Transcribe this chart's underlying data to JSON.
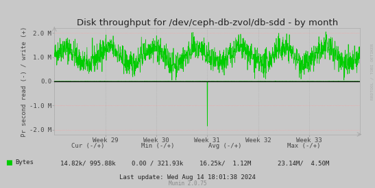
{
  "title": "Disk throughput for /dev/ceph-db-zvol/db-sdd - by month",
  "ylabel": "Pr second read (-) / write (+)",
  "background_color": "#c8c8c8",
  "plot_bg_color": "#c8c8c8",
  "line_color": "#00cc00",
  "zero_line_color": "#000000",
  "grid_h_color": "#ff9999",
  "grid_v_color": "#aaaaaa",
  "ylim": [
    -2200000,
    2200000
  ],
  "yticks": [
    -2000000,
    -1000000,
    0.0,
    1000000,
    2000000
  ],
  "ytick_labels": [
    "-2.0 M",
    "-1.0 M",
    "0.0",
    "1.0 M",
    "2.0 M"
  ],
  "xtick_labels": [
    "Week 29",
    "Week 30",
    "Week 31",
    "Week 32",
    "Week 33"
  ],
  "legend_label": "Bytes",
  "legend_color": "#00cc00",
  "stats_cur": "14.82k/ 995.88k",
  "stats_min": "0.00 / 321.93k",
  "stats_avg": "16.25k/  1.12M",
  "stats_max": "23.14M/  4.50M",
  "last_update": "Last update: Wed Aug 14 18:01:38 2024",
  "munin_version": "Munin 2.0.75",
  "rrdtool_label": "RRDTOOL / TOBI OETIKER",
  "title_fontsize": 9.5,
  "axis_fontsize": 6.5,
  "stats_fontsize": 6.5,
  "watermark_fontsize": 5.5,
  "n_points": 1680,
  "spike_idx": 840,
  "spike_value": -1850000
}
